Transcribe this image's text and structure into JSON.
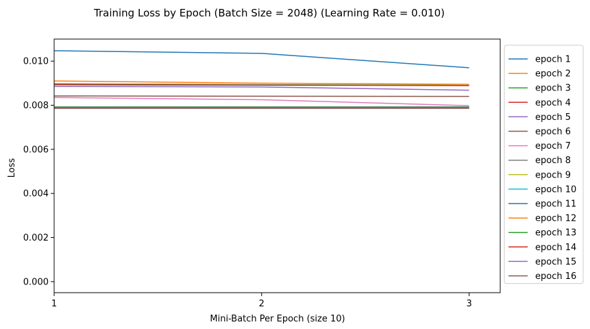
{
  "chart_data": {
    "type": "line",
    "title": "Training Loss by Epoch (Batch Size = 2048) (Learning Rate = 0.010)",
    "xlabel": "Mini-Batch Per Epoch (size 10)",
    "ylabel": "Loss",
    "x": [
      1,
      2,
      3
    ],
    "x_ticks": [
      "1",
      "2",
      "3"
    ],
    "y_ticks": [
      "0.000",
      "0.002",
      "0.004",
      "0.006",
      "0.008",
      "0.010"
    ],
    "xlim": [
      1,
      3.15
    ],
    "ylim": [
      -0.0005,
      0.011
    ],
    "grid": false,
    "legend_position": "outside-right",
    "series": [
      {
        "name": "epoch 1",
        "color": "#1f77b4",
        "values": [
          0.01047,
          0.01035,
          0.0097
        ]
      },
      {
        "name": "epoch 2",
        "color": "#ff7f0e",
        "values": [
          0.0091,
          0.009,
          0.00895
        ]
      },
      {
        "name": "epoch 3",
        "color": "#2ca02c",
        "values": [
          0.00897,
          0.00893,
          0.0089
        ]
      },
      {
        "name": "epoch 4",
        "color": "#d62728",
        "values": [
          0.00893,
          0.00891,
          0.00889
        ]
      },
      {
        "name": "epoch 5",
        "color": "#9467bd",
        "values": [
          0.00885,
          0.00883,
          0.00868
        ]
      },
      {
        "name": "epoch 6",
        "color": "#8c564b",
        "values": [
          0.00842,
          0.00841,
          0.0084
        ]
      },
      {
        "name": "epoch 7",
        "color": "#e377c2",
        "values": [
          0.00835,
          0.00825,
          0.00798
        ]
      },
      {
        "name": "epoch 8",
        "color": "#7f7f7f",
        "values": [
          0.00793,
          0.00793,
          0.00793
        ]
      },
      {
        "name": "epoch 9",
        "color": "#bcbd22",
        "values": [
          0.00792,
          0.00792,
          0.00792
        ]
      },
      {
        "name": "epoch 10",
        "color": "#17becf",
        "values": [
          0.00791,
          0.00791,
          0.00791
        ]
      },
      {
        "name": "epoch 11",
        "color": "#1f77b4",
        "values": [
          0.0079,
          0.0079,
          0.0079
        ]
      },
      {
        "name": "epoch 12",
        "color": "#ff7f0e",
        "values": [
          0.00789,
          0.00789,
          0.00789
        ]
      },
      {
        "name": "epoch 13",
        "color": "#2ca02c",
        "values": [
          0.00789,
          0.00789,
          0.00789
        ]
      },
      {
        "name": "epoch 14",
        "color": "#d62728",
        "values": [
          0.00788,
          0.00788,
          0.00788
        ]
      },
      {
        "name": "epoch 15",
        "color": "#9467bd",
        "values": [
          0.00787,
          0.00787,
          0.00787
        ]
      },
      {
        "name": "epoch 16",
        "color": "#8c564b",
        "values": [
          0.00786,
          0.00786,
          0.00786
        ]
      }
    ]
  }
}
